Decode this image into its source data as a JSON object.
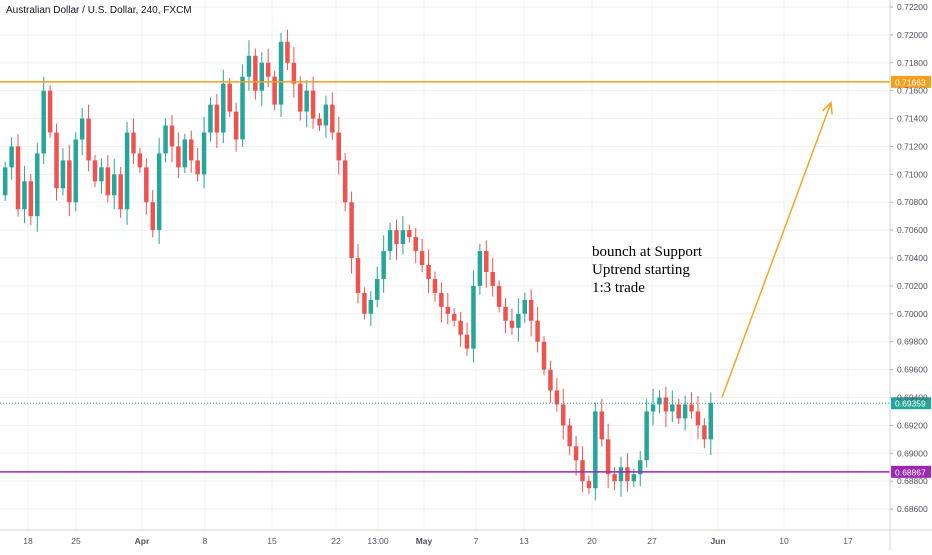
{
  "header": {
    "title": "Australian Dollar / U.S. Dollar, 240, FXCM"
  },
  "colors": {
    "up": "#26a69a",
    "down": "#ef5350",
    "resistance": "#f59f1c",
    "support": "#9c27b0",
    "current": "#26a69a",
    "arrow": "#f5a623",
    "axis_text": "#50535e",
    "grid": "#eef0f3"
  },
  "chart_data": {
    "type": "candlestick",
    "title": "Australian Dollar / U.S. Dollar, 240, FXCM",
    "ylim": [
      0.6845,
      0.7225
    ],
    "y_ticks": [
      "0.72200",
      "0.72000",
      "0.71800",
      "0.71600",
      "0.71400",
      "0.71200",
      "0.71000",
      "0.70800",
      "0.70600",
      "0.70400",
      "0.70200",
      "0.70000",
      "0.69800",
      "0.69600",
      "0.69400",
      "0.69200",
      "0.69000",
      "0.68800",
      "0.68600"
    ],
    "x_ticks": [
      "18",
      "25",
      "Apr",
      "8",
      "15",
      "22",
      "13:00",
      "May",
      "7",
      "13",
      "20",
      "27",
      "Jun",
      "10",
      "17"
    ],
    "price_levels": [
      {
        "name": "resistance",
        "value": 0.71663,
        "label": "0.71663"
      },
      {
        "name": "current",
        "value": 0.69359,
        "label": "0.69359"
      },
      {
        "name": "support",
        "value": 0.68867,
        "label": "0.68867"
      }
    ],
    "annotation": {
      "lines": [
        "bounch at Support",
        "Uptrend starting",
        "1:3 trade"
      ]
    },
    "arrow": {
      "from": {
        "x": "Jun",
        "y": 0.694
      },
      "to": {
        "x": "Jun+15",
        "y": 0.716
      }
    },
    "path": [
      0.7085,
      0.7105,
      0.712,
      0.7075,
      0.7095,
      0.707,
      0.7115,
      0.716,
      0.713,
      0.709,
      0.711,
      0.708,
      0.7125,
      0.714,
      0.711,
      0.7095,
      0.7105,
      0.7085,
      0.71,
      0.7075,
      0.713,
      0.7115,
      0.7105,
      0.708,
      0.706,
      0.7115,
      0.7135,
      0.712,
      0.7105,
      0.7125,
      0.711,
      0.71,
      0.713,
      0.715,
      0.713,
      0.7165,
      0.7145,
      0.7125,
      0.717,
      0.7185,
      0.716,
      0.718,
      0.717,
      0.715,
      0.7195,
      0.718,
      0.7165,
      0.7145,
      0.716,
      0.714,
      0.7135,
      0.715,
      0.713,
      0.711,
      0.708,
      0.704,
      0.7015,
      0.7,
      0.701,
      0.7025,
      0.7045,
      0.706,
      0.705,
      0.706,
      0.7055,
      0.7045,
      0.7035,
      0.7025,
      0.7015,
      0.7005,
      0.7,
      0.6995,
      0.6985,
      0.6975,
      0.702,
      0.7045,
      0.703,
      0.702,
      0.7005,
      0.6995,
      0.699,
      0.7,
      0.701,
      0.6995,
      0.698,
      0.696,
      0.6945,
      0.6935,
      0.692,
      0.6905,
      0.6895,
      0.688,
      0.6875,
      0.693,
      0.691,
      0.6885,
      0.688,
      0.689,
      0.688,
      0.6885,
      0.6895,
      0.693,
      0.6935,
      0.694,
      0.693,
      0.6935,
      0.6925,
      0.6935,
      0.693,
      0.692,
      0.691,
      0.6936
    ]
  }
}
